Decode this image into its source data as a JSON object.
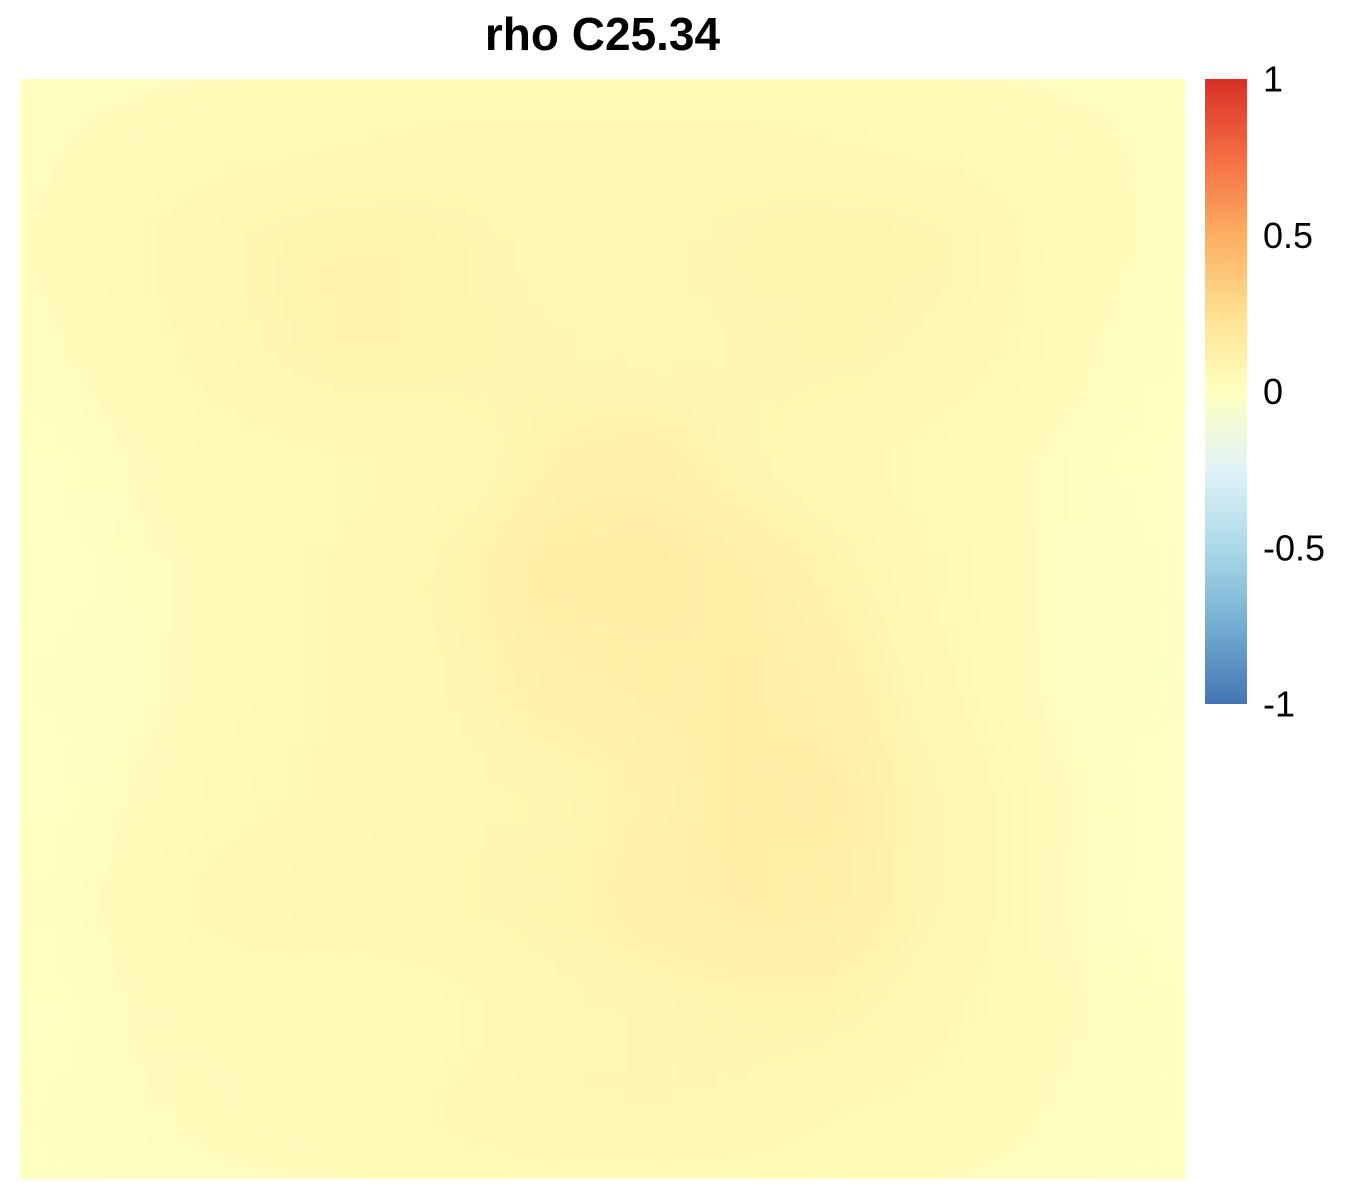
{
  "chart_data": {
    "type": "heatmap",
    "title": "rho C25.34",
    "xlabel": "",
    "ylabel": "",
    "value_range": [
      -1,
      1
    ],
    "legend": {
      "placement": "right",
      "ticks": [
        "1",
        "0.5",
        "0",
        "-0.5",
        "-1"
      ],
      "tick_values": [
        1,
        0.5,
        0,
        -0.5,
        -1
      ]
    },
    "colors": {
      "-1": "#4575b4",
      "-0.75": "#74add1",
      "-0.5": "#abd9e9",
      "-0.25": "#e0f3f8",
      "0": "#ffffbf",
      "0.25": "#fee090",
      "0.5": "#fdae61",
      "0.75": "#f46d43",
      "1": "#d73027"
    },
    "grid": {
      "rows": 10,
      "cols": 12,
      "values": [
        [
          0.02,
          0.03,
          0.04,
          0.05,
          0.06,
          0.06,
          0.06,
          0.06,
          0.05,
          0.04,
          0.03,
          0.02
        ],
        [
          0.03,
          0.06,
          0.09,
          0.1,
          0.09,
          0.07,
          0.07,
          0.09,
          0.1,
          0.09,
          0.05,
          0.02
        ],
        [
          0.02,
          0.05,
          0.08,
          0.1,
          0.09,
          0.08,
          0.07,
          0.08,
          0.09,
          0.07,
          0.04,
          0.01
        ],
        [
          0.0,
          0.03,
          0.04,
          0.05,
          0.06,
          0.1,
          0.11,
          0.08,
          0.06,
          0.04,
          0.02,
          0.0
        ],
        [
          -0.01,
          0.02,
          0.04,
          0.06,
          0.09,
          0.14,
          0.15,
          0.12,
          0.09,
          0.05,
          0.02,
          -0.02
        ],
        [
          -0.02,
          0.02,
          0.04,
          0.06,
          0.08,
          0.11,
          0.12,
          0.13,
          0.11,
          0.06,
          0.02,
          -0.03
        ],
        [
          0.0,
          0.03,
          0.05,
          0.06,
          0.07,
          0.08,
          0.1,
          0.14,
          0.13,
          0.08,
          0.03,
          0.0
        ],
        [
          0.01,
          0.05,
          0.07,
          0.08,
          0.08,
          0.09,
          0.11,
          0.13,
          0.12,
          0.08,
          0.03,
          -0.01
        ],
        [
          0.0,
          0.03,
          0.03,
          0.02,
          0.04,
          0.07,
          0.08,
          0.09,
          0.09,
          0.06,
          0.03,
          0.01
        ],
        [
          0.01,
          0.02,
          0.03,
          0.04,
          0.06,
          0.08,
          0.08,
          0.07,
          0.05,
          0.04,
          0.02,
          0.01
        ]
      ]
    }
  }
}
